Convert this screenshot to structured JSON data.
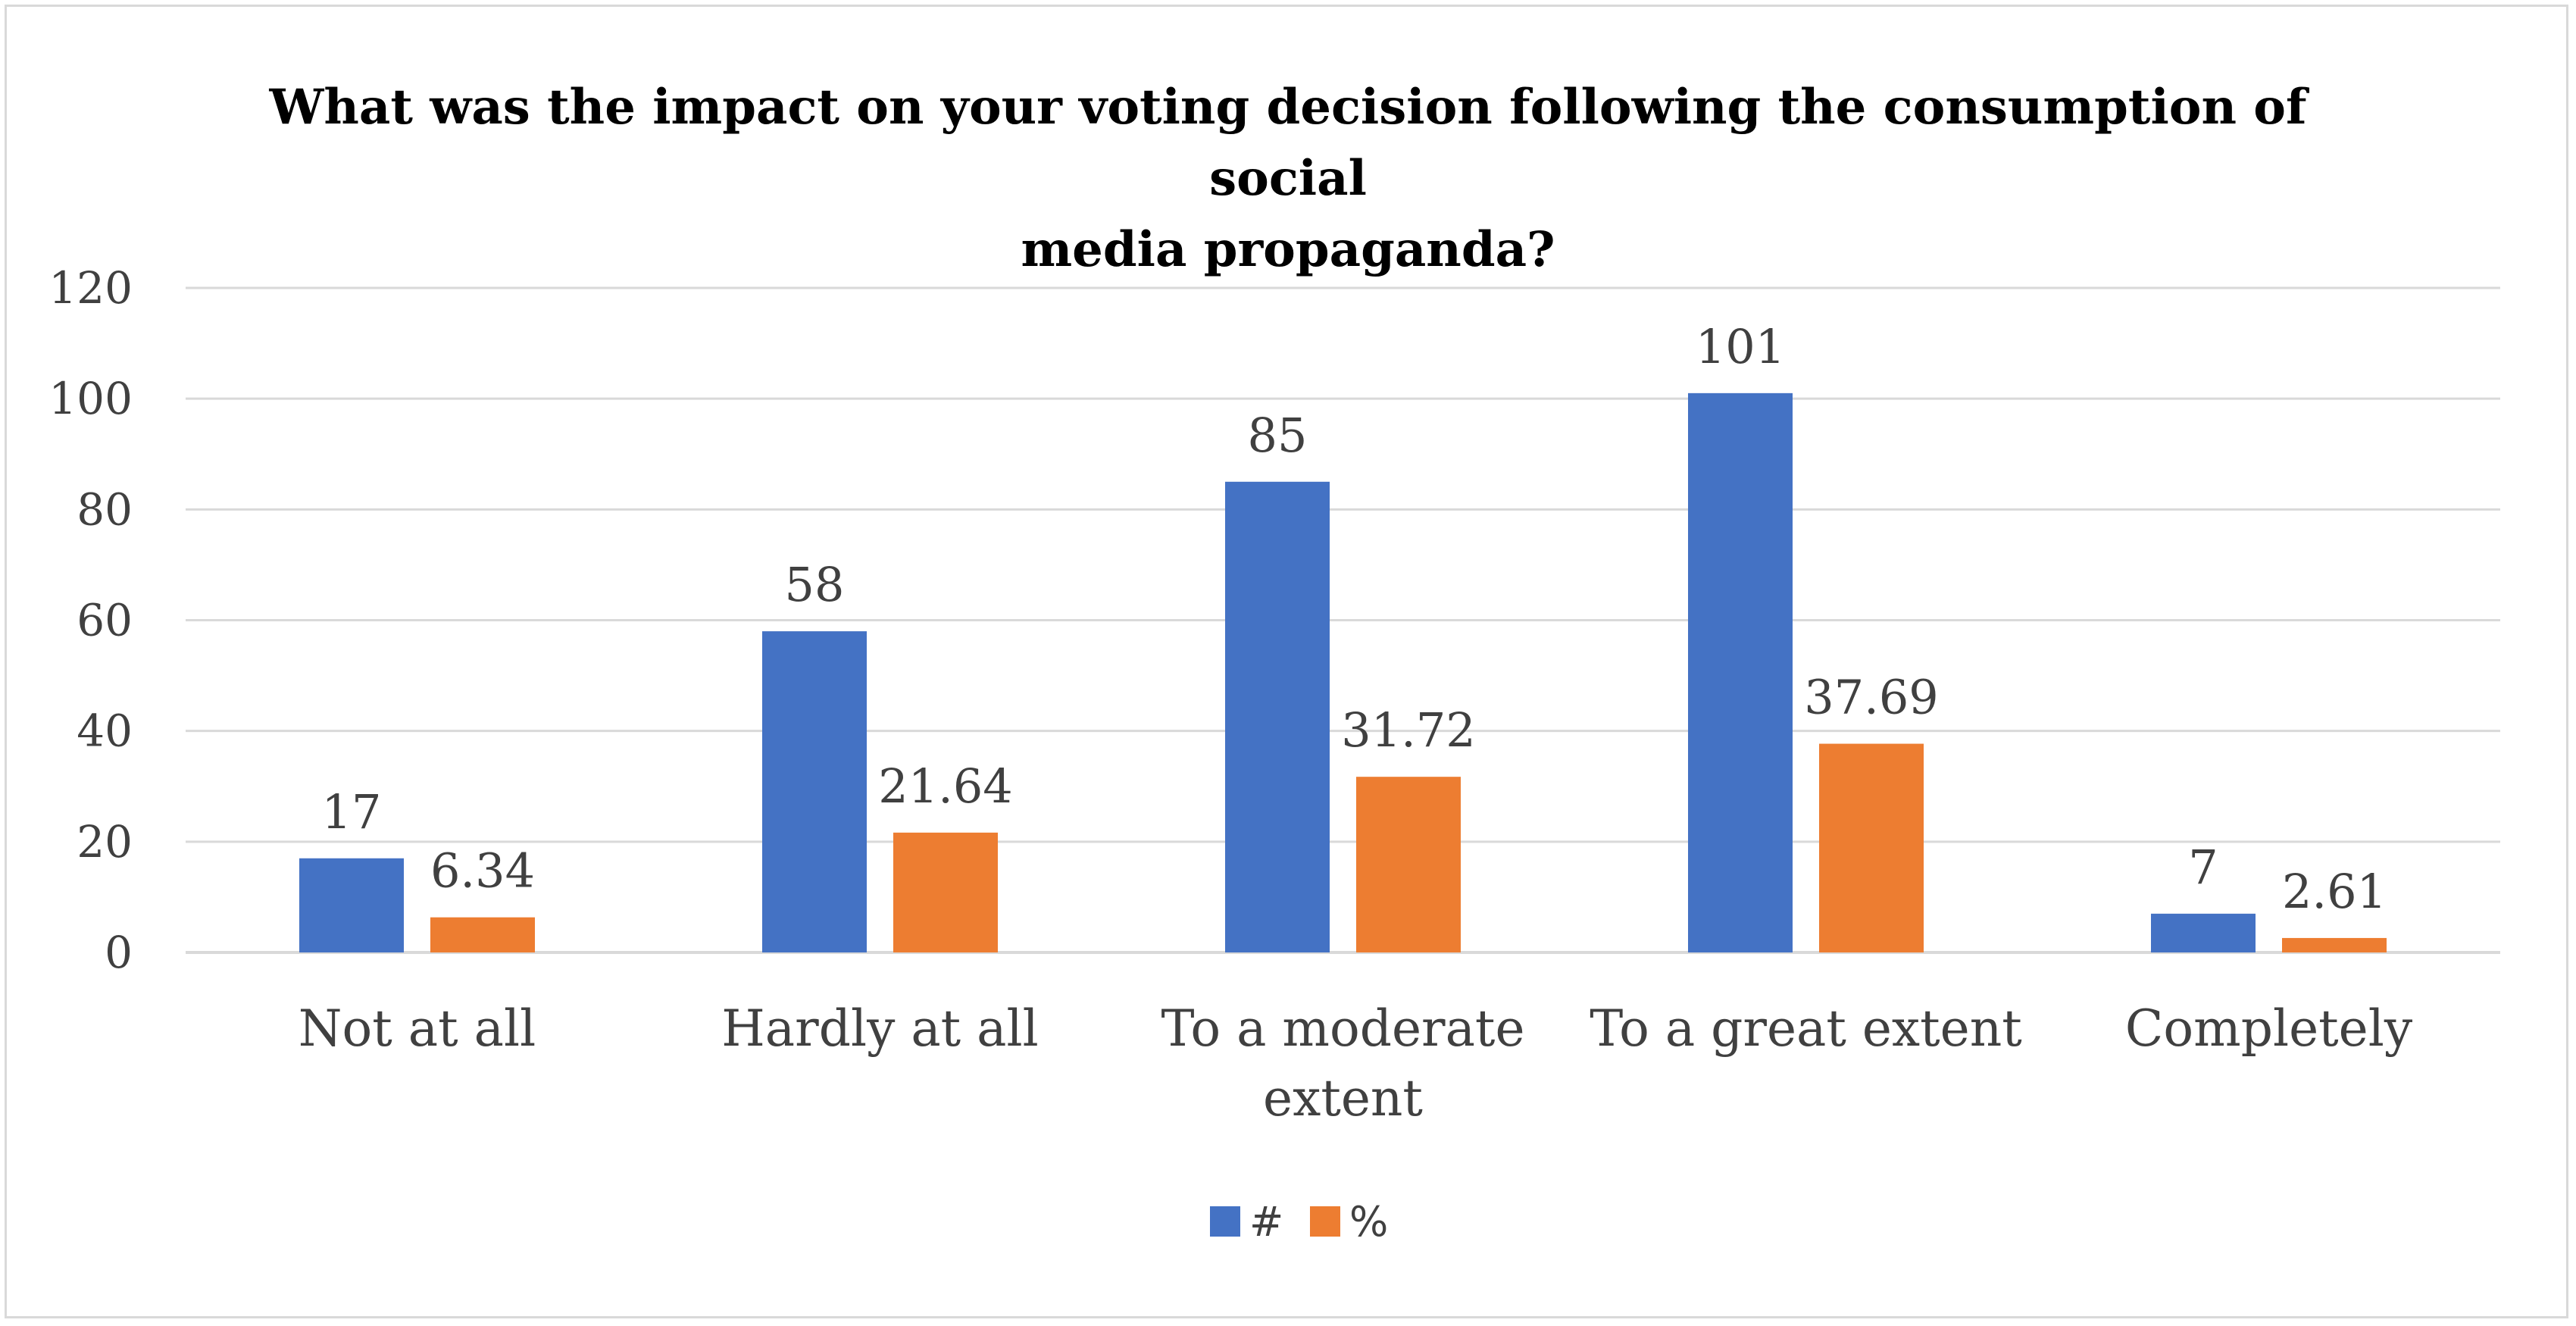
{
  "chart_data": {
    "type": "bar",
    "title_lines": [
      "What was the impact on your voting decision following the consumption of social",
      "media propaganda?"
    ],
    "categories": [
      [
        "Not at all"
      ],
      [
        "Hardly at all"
      ],
      [
        "To a moderate",
        "extent"
      ],
      [
        "To a great extent"
      ],
      [
        "Completely"
      ]
    ],
    "series": [
      {
        "name": "#",
        "color": "#4472C4",
        "values": [
          17,
          58,
          85,
          101,
          7
        ],
        "labels": [
          "17",
          "58",
          "85",
          "101",
          "7"
        ]
      },
      {
        "name": "%",
        "color": "#ED7D31",
        "values": [
          6.34,
          21.64,
          31.72,
          37.69,
          2.61
        ],
        "labels": [
          "6.34",
          "21.64",
          "31.72",
          "37.69",
          "2.61"
        ]
      }
    ],
    "ylim": [
      0,
      120
    ],
    "yticks": [
      0,
      20,
      40,
      60,
      80,
      100,
      120
    ],
    "grid": true,
    "legend": "bottom"
  }
}
